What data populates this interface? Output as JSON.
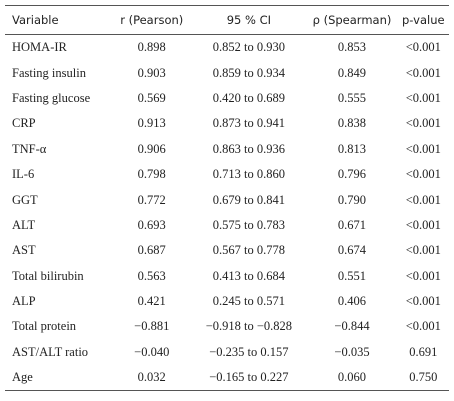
{
  "table": {
    "header": [
      "Variable",
      "r (Pearson)",
      "95 % CI",
      "ρ (Spearman)",
      "p-value"
    ],
    "rows": [
      [
        "HOMA-IR",
        "0.898",
        "0.852 to 0.930",
        "0.853",
        "<0.001"
      ],
      [
        "Fasting insulin",
        "0.903",
        "0.859 to 0.934",
        "0.849",
        "<0.001"
      ],
      [
        "Fasting glucose",
        "0.569",
        "0.420 to 0.689",
        "0.555",
        "<0.001"
      ],
      [
        "CRP",
        "0.913",
        "0.873 to 0.941",
        "0.838",
        "<0.001"
      ],
      [
        "TNF-α",
        "0.906",
        "0.863 to 0.936",
        "0.813",
        "<0.001"
      ],
      [
        "IL-6",
        "0.798",
        "0.713 to 0.860",
        "0.796",
        "<0.001"
      ],
      [
        "GGT",
        "0.772",
        "0.679 to 0.841",
        "0.790",
        "<0.001"
      ],
      [
        "ALT",
        "0.693",
        "0.575 to 0.783",
        "0.671",
        "<0.001"
      ],
      [
        "AST",
        "0.687",
        "0.567 to 0.778",
        "0.674",
        "<0.001"
      ],
      [
        "Total bilirubin",
        "0.563",
        "0.413 to 0.684",
        "0.551",
        "<0.001"
      ],
      [
        "ALP",
        "0.421",
        "0.245 to 0.571",
        "0.406",
        "<0.001"
      ],
      [
        "Total protein",
        "−0.881",
        "−0.918 to −0.828",
        "−0.844",
        "<0.001"
      ],
      [
        "AST/ALT ratio",
        "−0.040",
        "−0.235 to 0.157",
        "−0.035",
        "0.691"
      ],
      [
        "Age",
        "0.032",
        "−0.165 to 0.227",
        "0.060",
        "0.750"
      ]
    ]
  }
}
